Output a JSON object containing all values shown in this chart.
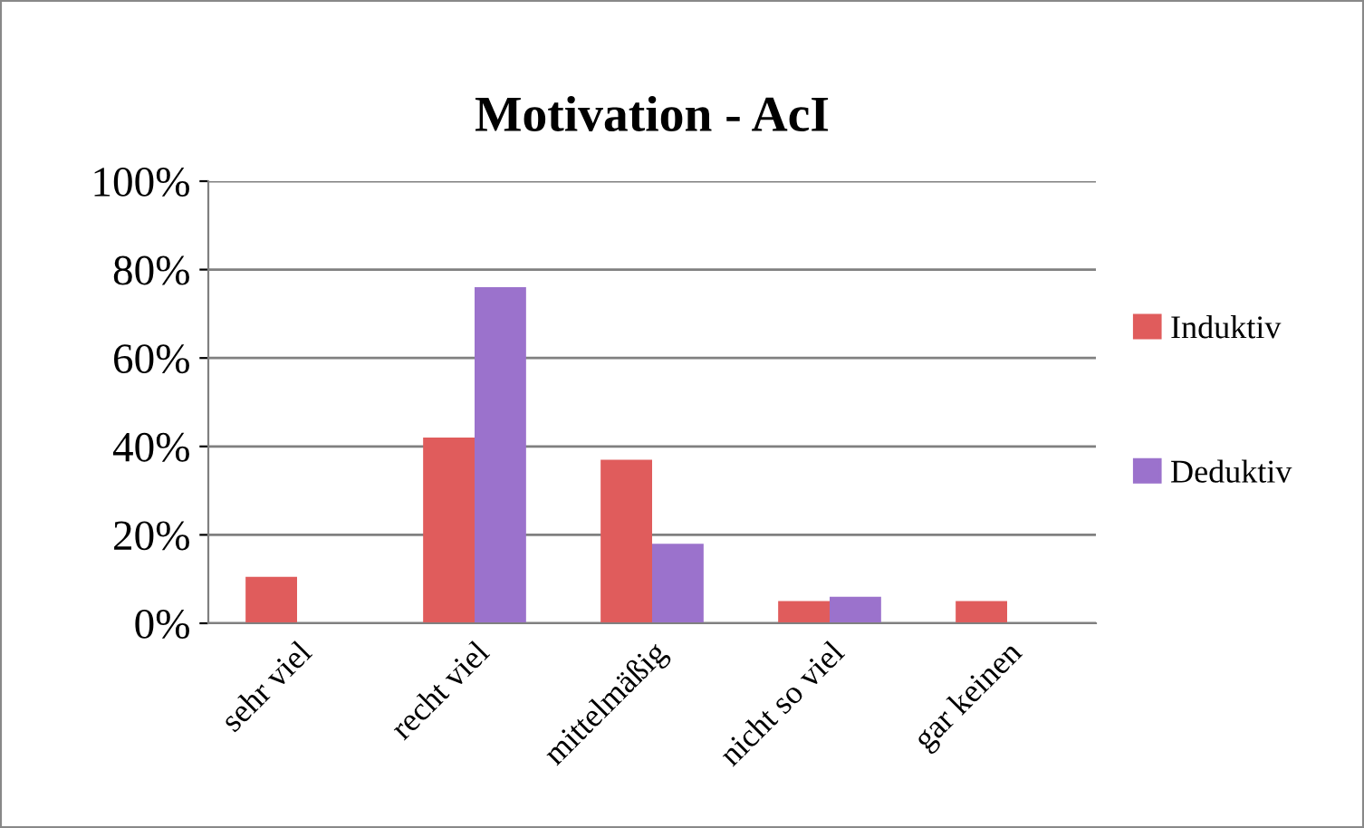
{
  "chart_data": {
    "type": "bar",
    "title": "Motivation - AcI",
    "categories": [
      "sehr viel",
      "recht viel",
      "mittelmäßig",
      "nicht so viel",
      "gar keinen"
    ],
    "series": [
      {
        "name": "Induktiv",
        "color": "#e05c5c",
        "values": [
          10.5,
          42,
          37,
          5,
          5
        ]
      },
      {
        "name": "Deduktiv",
        "color": "#9b72cc",
        "values": [
          0,
          76,
          18,
          6,
          0
        ]
      }
    ],
    "ylim": [
      0,
      100
    ],
    "yticks": [
      {
        "value": 0,
        "label": "0%"
      },
      {
        "value": 20,
        "label": "20%"
      },
      {
        "value": 40,
        "label": "40%"
      },
      {
        "value": 60,
        "label": "60%"
      },
      {
        "value": 80,
        "label": "80%"
      },
      {
        "value": 100,
        "label": "100%"
      }
    ],
    "grid": "y",
    "legend": "right"
  }
}
